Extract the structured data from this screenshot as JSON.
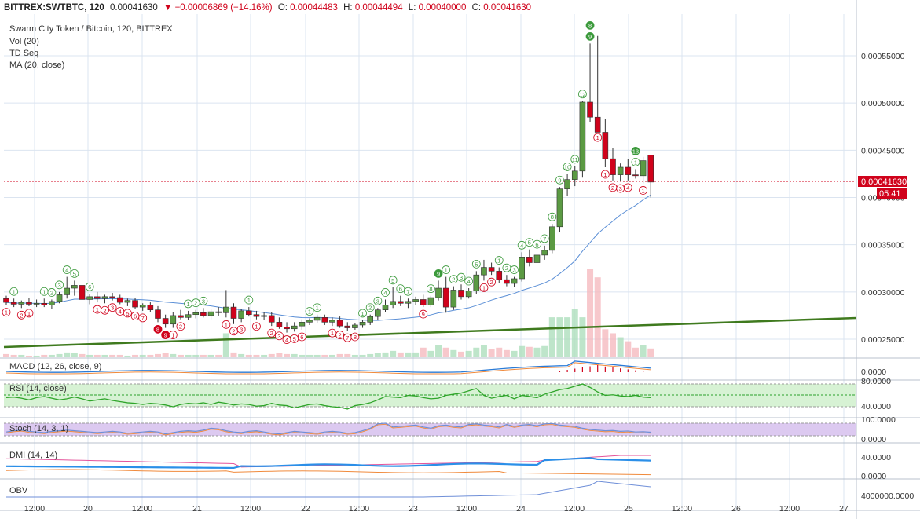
{
  "header": {
    "symbol": "BITTREX:SWTBTC, 120",
    "last": "0.00041630",
    "change": "−0.00006869 (−14.16%)",
    "o_label": "O:",
    "o": "0.00044483",
    "h_label": "H:",
    "h": "0.00044494",
    "l_label": "L:",
    "l": "0.00040000",
    "c_label": "C:",
    "c": "0.00041630"
  },
  "legend": {
    "title": "Swarm City Token / Bitcoin, 120, BITTREX",
    "vol": "Vol (20)",
    "td": "TD Seq",
    "ma": "MA (20, close)"
  },
  "price_tag": {
    "value": "0.00041630",
    "countdown": "05:41"
  },
  "colors": {
    "up": "#5b9a43",
    "down": "#d0021b",
    "ma": "#5b8fd6",
    "trend": "#3f7a1e",
    "rsi": "#2fa52a",
    "macd": "#2b7bd6",
    "stoch": "#6f8fd8",
    "dmi_plus": "#2b8fe8",
    "dmi_minus": "#f08a3c",
    "adx": "#e4539a",
    "obv": "#6f8fd8"
  },
  "panels": {
    "macd": {
      "label": "MACD (12, 26, close, 9)",
      "ticks": [
        "0.0000"
      ]
    },
    "rsi": {
      "label": "RSI (14, close)",
      "ticks": [
        "80.0000",
        "40.0000"
      ]
    },
    "stoch": {
      "label": "Stoch (14, 3, 1)",
      "ticks": [
        "100.0000",
        "0.0000"
      ]
    },
    "dmi": {
      "label": "DMI (14, 14)",
      "ticks": [
        "40.0000",
        "0.0000"
      ]
    },
    "obv": {
      "label": "OBV",
      "ticks": [
        "4000000.0000"
      ]
    }
  },
  "chart_data": {
    "type": "candlestick",
    "price_axis": {
      "min": 0.0002,
      "max": 0.00059,
      "ticks": [
        "0.00055000",
        "0.00050000",
        "0.00045000",
        "0.00040000",
        "0.00035000",
        "0.00030000",
        "0.00025000"
      ]
    },
    "time_axis": {
      "labels": [
        "12:00",
        "20",
        "12:00",
        "21",
        "12:00",
        "22",
        "12:00",
        "23",
        "12:00",
        "24",
        "12:00",
        "25",
        "12:00",
        "26",
        "12:00",
        "27"
      ]
    },
    "ohlc": [
      [
        0.000293,
        0.000296,
        0.000286,
        0.000289
      ],
      [
        0.000289,
        0.000293,
        0.000284,
        0.000287
      ],
      [
        0.000287,
        0.000291,
        0.000283,
        0.000289
      ],
      [
        0.000289,
        0.000294,
        0.000285,
        0.000287
      ],
      [
        0.000287,
        0.000292,
        0.000284,
        0.000288
      ],
      [
        0.000288,
        0.000293,
        0.000284,
        0.000286
      ],
      [
        0.000286,
        0.000292,
        0.000282,
        0.00029
      ],
      [
        0.00029,
        0.0003,
        0.000288,
        0.000297
      ],
      [
        0.000297,
        0.000316,
        0.000293,
        0.000304
      ],
      [
        0.000304,
        0.000312,
        0.000296,
        0.000307
      ],
      [
        0.000307,
        0.000311,
        0.000288,
        0.000292
      ],
      [
        0.000292,
        0.000298,
        0.000287,
        0.000295
      ],
      [
        0.000295,
        0.0003,
        0.000289,
        0.000293
      ],
      [
        0.000293,
        0.000297,
        0.000288,
        0.000295
      ],
      [
        0.000295,
        0.000299,
        0.000291,
        0.000294
      ],
      [
        0.000294,
        0.000297,
        0.000287,
        0.000289
      ],
      [
        0.000289,
        0.000293,
        0.000285,
        0.000291
      ],
      [
        0.000291,
        0.000294,
        0.000282,
        0.000284
      ],
      [
        0.000284,
        0.000288,
        0.00028,
        0.000286
      ],
      [
        0.000286,
        0.000289,
        0.000279,
        0.000281
      ],
      [
        0.000281,
        0.000285,
        0.000268,
        0.000272
      ],
      [
        0.000272,
        0.000276,
        0.000262,
        0.000266
      ],
      [
        0.000266,
        0.000279,
        0.000262,
        0.000275
      ],
      [
        0.000275,
        0.000281,
        0.000271,
        0.000273
      ],
      [
        0.000273,
        0.00028,
        0.00027,
        0.000276
      ],
      [
        0.000276,
        0.000281,
        0.000272,
        0.000278
      ],
      [
        0.000278,
        0.000283,
        0.000273,
        0.000275
      ],
      [
        0.000275,
        0.000282,
        0.000271,
        0.000279
      ],
      [
        0.000279,
        0.000284,
        0.000275,
        0.000278
      ],
      [
        0.000278,
        0.000302,
        0.000273,
        0.000284
      ],
      [
        0.000284,
        0.000288,
        0.000266,
        0.000272
      ],
      [
        0.000272,
        0.000282,
        0.000268,
        0.00028
      ],
      [
        0.00028,
        0.000284,
        0.000274,
        0.000276
      ],
      [
        0.000276,
        0.00028,
        0.000271,
        0.000274
      ],
      [
        0.000274,
        0.000279,
        0.00027,
        0.000275
      ],
      [
        0.000275,
        0.000279,
        0.000264,
        0.000268
      ],
      [
        0.000268,
        0.000273,
        0.000261,
        0.000263
      ],
      [
        0.000263,
        0.000268,
        0.000257,
        0.000261
      ],
      [
        0.000261,
        0.000268,
        0.000258,
        0.000264
      ],
      [
        0.000264,
        0.000271,
        0.00026,
        0.000268
      ],
      [
        0.000268,
        0.000272,
        0.000265,
        0.00027
      ],
      [
        0.00027,
        0.000276,
        0.000267,
        0.000273
      ],
      [
        0.000273,
        0.000276,
        0.000265,
        0.000268
      ],
      [
        0.000268,
        0.000273,
        0.000264,
        0.00027
      ],
      [
        0.00027,
        0.000274,
        0.000262,
        0.000264
      ],
      [
        0.000264,
        0.000268,
        0.000259,
        0.000262
      ],
      [
        0.000262,
        0.000267,
        0.00026,
        0.000265
      ],
      [
        0.000265,
        0.00027,
        0.000262,
        0.000268
      ],
      [
        0.000268,
        0.000276,
        0.000265,
        0.000274
      ],
      [
        0.000274,
        0.000283,
        0.00027,
        0.000281
      ],
      [
        0.000281,
        0.000292,
        0.000279,
        0.000286
      ],
      [
        0.000286,
        0.000305,
        0.000283,
        0.00029
      ],
      [
        0.00029,
        0.000296,
        0.000285,
        0.000288
      ],
      [
        0.000288,
        0.000293,
        0.000283,
        0.00029
      ],
      [
        0.00029,
        0.000295,
        0.000286,
        0.000292
      ],
      [
        0.000292,
        0.000297,
        0.000284,
        0.000286
      ],
      [
        0.000286,
        0.000296,
        0.000284,
        0.000294
      ],
      [
        0.000294,
        0.000312,
        0.000291,
        0.000304
      ],
      [
        0.000304,
        0.000316,
        0.000278,
        0.000284
      ],
      [
        0.000284,
        0.000306,
        0.000281,
        0.000302
      ],
      [
        0.000302,
        0.000308,
        0.000292,
        0.000295
      ],
      [
        0.000295,
        0.000304,
        0.000293,
        0.000301
      ],
      [
        0.000301,
        0.000322,
        0.000298,
        0.000318
      ],
      [
        0.000318,
        0.000334,
        0.000312,
        0.000326
      ],
      [
        0.000326,
        0.000331,
        0.000318,
        0.000322
      ],
      [
        0.000322,
        0.000326,
        0.000309,
        0.000313
      ],
      [
        0.000313,
        0.000318,
        0.000306,
        0.000309
      ],
      [
        0.000309,
        0.000316,
        0.000305,
        0.000314
      ],
      [
        0.000314,
        0.000342,
        0.000311,
        0.000337
      ],
      [
        0.000337,
        0.000345,
        0.000327,
        0.000331
      ],
      [
        0.000331,
        0.000343,
        0.000326,
        0.000339
      ],
      [
        0.000339,
        0.000349,
        0.000334,
        0.000344
      ],
      [
        0.000344,
        0.000372,
        0.000341,
        0.000369
      ],
      [
        0.000369,
        0.000411,
        0.000363,
        0.000409
      ],
      [
        0.000409,
        0.000425,
        0.000402,
        0.000419
      ],
      [
        0.000419,
        0.000433,
        0.000412,
        0.000428
      ],
      [
        0.000428,
        0.000502,
        0.000421,
        0.000501
      ],
      [
        0.000501,
        0.000563,
        0.00048,
        0.000485
      ],
      [
        0.000485,
        0.000571,
        0.000471,
        0.000469
      ],
      [
        0.000469,
        0.000483,
        0.000432,
        0.000441
      ],
      [
        0.000441,
        0.000452,
        0.000418,
        0.000424
      ],
      [
        0.000424,
        0.000436,
        0.000417,
        0.000432
      ],
      [
        0.000432,
        0.000441,
        0.000418,
        0.000424
      ],
      [
        0.000424,
        0.00043,
        0.00042,
        0.000423
      ],
      [
        0.000423,
        0.000443,
        0.000415,
        0.000439
      ],
      [
        0.000444834,
        0.00044494,
        0.0004,
        0.0004163
      ]
    ],
    "volume": [
      0.4,
      0.3,
      0.3,
      0.2,
      0.2,
      0.3,
      0.3,
      0.4,
      0.6,
      0.5,
      0.4,
      0.3,
      0.3,
      0.3,
      0.3,
      0.3,
      0.2,
      0.3,
      0.3,
      0.3,
      0.4,
      0.5,
      0.4,
      0.3,
      0.3,
      0.3,
      0.3,
      0.3,
      0.3,
      3.0,
      0.6,
      0.4,
      0.3,
      0.3,
      0.3,
      0.4,
      0.5,
      0.4,
      0.4,
      0.3,
      0.3,
      0.3,
      0.3,
      0.3,
      0.4,
      0.4,
      0.3,
      0.3,
      0.4,
      0.5,
      0.6,
      0.8,
      0.6,
      0.6,
      0.6,
      1.2,
      0.8,
      1.5,
      1.2,
      0.9,
      0.7,
      0.8,
      1.2,
      1.5,
      1.0,
      1.2,
      0.9,
      0.8,
      1.4,
      1.3,
      1.2,
      1.4,
      5.0,
      5.0,
      5.0,
      6.0,
      5.0,
      11.0,
      10.0,
      3.5,
      3.0,
      2.5,
      2.0,
      1.2,
      1.5,
      1.1
    ],
    "ma20_note": "20-period simple moving average of close",
    "td_labels": [
      {
        "i": 0,
        "t": "1",
        "up": false
      },
      {
        "i": 1,
        "t": "1",
        "up": true
      },
      {
        "i": 2,
        "t": "2",
        "up": false
      },
      {
        "i": 3,
        "t": "1",
        "up": false
      },
      {
        "i": 5,
        "t": "1",
        "up": true
      },
      {
        "i": 6,
        "t": "2",
        "up": true
      },
      {
        "i": 7,
        "t": "3",
        "up": true
      },
      {
        "i": 8,
        "t": "4",
        "up": true
      },
      {
        "i": 9,
        "t": "5",
        "up": true
      },
      {
        "i": 11,
        "t": "6",
        "up": true
      },
      {
        "i": 12,
        "t": "1",
        "up": false
      },
      {
        "i": 13,
        "t": "2",
        "up": false
      },
      {
        "i": 14,
        "t": "3",
        "up": false
      },
      {
        "i": 15,
        "t": "4",
        "up": false
      },
      {
        "i": 16,
        "t": "5",
        "up": false
      },
      {
        "i": 17,
        "t": "6",
        "up": false
      },
      {
        "i": 18,
        "t": "7",
        "up": false
      },
      {
        "i": 20,
        "t": "8",
        "up": false,
        "filled": true
      },
      {
        "i": 21,
        "t": "9",
        "up": false,
        "filled": true
      },
      {
        "i": 22,
        "t": "1",
        "up": false
      },
      {
        "i": 23,
        "t": "2",
        "up": false
      },
      {
        "i": 24,
        "t": "1",
        "up": true
      },
      {
        "i": 25,
        "t": "2",
        "up": true
      },
      {
        "i": 26,
        "t": "3",
        "up": true
      },
      {
        "i": 29,
        "t": "1",
        "up": false
      },
      {
        "i": 30,
        "t": "2",
        "up": false
      },
      {
        "i": 31,
        "t": "3",
        "up": false
      },
      {
        "i": 32,
        "t": "1",
        "up": true
      },
      {
        "i": 33,
        "t": "1",
        "up": false
      },
      {
        "i": 35,
        "t": "2",
        "up": false
      },
      {
        "i": 36,
        "t": "3",
        "up": false
      },
      {
        "i": 37,
        "t": "4",
        "up": false
      },
      {
        "i": 38,
        "t": "5",
        "up": false
      },
      {
        "i": 39,
        "t": "6",
        "up": false
      },
      {
        "i": 40,
        "t": "1",
        "up": true
      },
      {
        "i": 41,
        "t": "1",
        "up": true
      },
      {
        "i": 43,
        "t": "1",
        "up": false
      },
      {
        "i": 44,
        "t": "2",
        "up": false
      },
      {
        "i": 45,
        "t": "7",
        "up": false
      },
      {
        "i": 46,
        "t": "8",
        "up": false
      },
      {
        "i": 47,
        "t": "1",
        "up": true
      },
      {
        "i": 48,
        "t": "2",
        "up": true
      },
      {
        "i": 49,
        "t": "3",
        "up": true
      },
      {
        "i": 50,
        "t": "4",
        "up": true
      },
      {
        "i": 51,
        "t": "5",
        "up": true
      },
      {
        "i": 52,
        "t": "6",
        "up": true
      },
      {
        "i": 53,
        "t": "7",
        "up": true
      },
      {
        "i": 55,
        "t": "9",
        "up": false
      },
      {
        "i": 56,
        "t": "8",
        "up": true
      },
      {
        "i": 57,
        "t": "9",
        "up": true,
        "filled": true
      },
      {
        "i": 58,
        "t": "1",
        "up": true
      },
      {
        "i": 59,
        "t": "2",
        "up": true
      },
      {
        "i": 60,
        "t": "3",
        "up": true
      },
      {
        "i": 61,
        "t": "4",
        "up": true
      },
      {
        "i": 62,
        "t": "5",
        "up": true
      },
      {
        "i": 63,
        "t": "1",
        "up": false
      },
      {
        "i": 64,
        "t": "2",
        "up": false
      },
      {
        "i": 65,
        "t": "1",
        "up": true
      },
      {
        "i": 66,
        "t": "2",
        "up": true
      },
      {
        "i": 67,
        "t": "3",
        "up": true
      },
      {
        "i": 68,
        "t": "4",
        "up": true
      },
      {
        "i": 69,
        "t": "5",
        "up": true
      },
      {
        "i": 70,
        "t": "6",
        "up": true
      },
      {
        "i": 71,
        "t": "7",
        "up": true
      },
      {
        "i": 72,
        "t": "8",
        "up": true
      },
      {
        "i": 73,
        "t": "9",
        "up": true
      },
      {
        "i": 74,
        "t": "10",
        "up": true
      },
      {
        "i": 75,
        "t": "11",
        "up": true
      },
      {
        "i": 76,
        "t": "12",
        "up": true
      },
      {
        "i": 77,
        "t": "9",
        "up": true,
        "filled": true
      },
      {
        "i": 77,
        "t": "8",
        "up": true,
        "filled": true
      },
      {
        "i": 78,
        "t": "1",
        "up": false
      },
      {
        "i": 79,
        "t": "1",
        "up": false
      },
      {
        "i": 80,
        "t": "2",
        "up": false
      },
      {
        "i": 81,
        "t": "3",
        "up": false
      },
      {
        "i": 82,
        "t": "4",
        "up": false
      },
      {
        "i": 83,
        "t": "1",
        "up": true
      },
      {
        "i": 83,
        "t": "13",
        "up": true,
        "filled": true
      },
      {
        "i": 84,
        "t": "1",
        "up": false
      }
    ]
  }
}
